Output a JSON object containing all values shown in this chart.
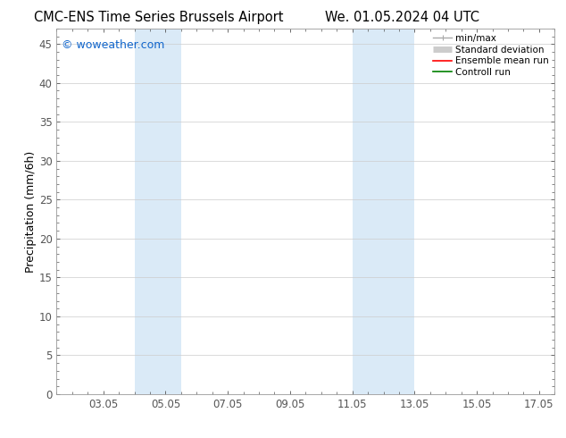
{
  "title_left": "CMC-ENS Time Series Brussels Airport",
  "title_right": "We. 01.05.2024 04 UTC",
  "ylabel": "Precipitation (mm/6h)",
  "watermark": "© woweather.com",
  "xlim": [
    1.5,
    17.5
  ],
  "ylim": [
    0,
    47
  ],
  "yticks": [
    0,
    5,
    10,
    15,
    20,
    25,
    30,
    35,
    40,
    45
  ],
  "xtick_labels": [
    "03.05",
    "05.05",
    "07.05",
    "09.05",
    "11.05",
    "13.05",
    "15.05",
    "17.05"
  ],
  "xtick_positions": [
    3.0,
    5.0,
    7.0,
    9.0,
    11.0,
    13.0,
    15.0,
    17.0
  ],
  "shaded_bands": [
    {
      "xmin": 4.0,
      "xmax": 5.5,
      "color": "#daeaf7"
    },
    {
      "xmin": 11.0,
      "xmax": 12.0,
      "color": "#daeaf7"
    },
    {
      "xmin": 12.0,
      "xmax": 13.0,
      "color": "#daeaf7"
    }
  ],
  "legend_items": [
    {
      "label": "min/max",
      "color": "#aaaaaa",
      "lw": 1.0
    },
    {
      "label": "Standard deviation",
      "color": "#cccccc",
      "lw": 5
    },
    {
      "label": "Ensemble mean run",
      "color": "#ff0000",
      "lw": 1.2
    },
    {
      "label": "Controll run",
      "color": "#008000",
      "lw": 1.2
    }
  ],
  "bg_color": "#ffffff",
  "plot_bg_color": "#ffffff",
  "grid_color": "#cccccc",
  "title_fontsize": 10.5,
  "tick_fontsize": 8.5,
  "ylabel_fontsize": 9,
  "watermark_color": "#1166cc",
  "watermark_fontsize": 9,
  "legend_fontsize": 7.5
}
